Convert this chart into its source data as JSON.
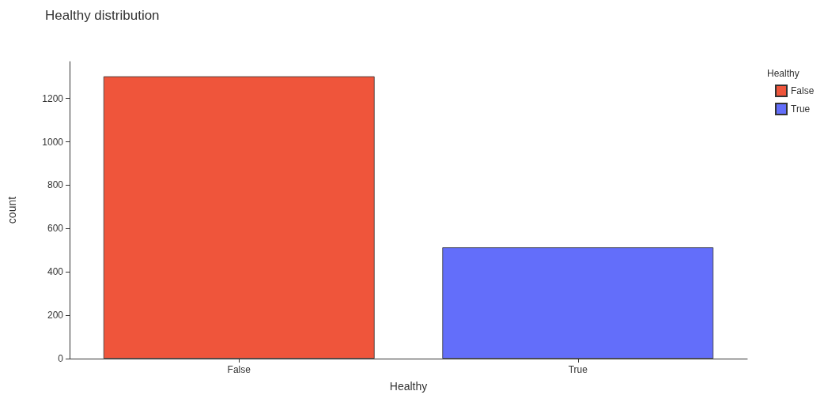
{
  "chart_data": {
    "type": "bar",
    "title": "Healthy distribution",
    "xlabel": "Healthy",
    "ylabel": "count",
    "legend_title": "Healthy",
    "categories": [
      "False",
      "True"
    ],
    "series": [
      {
        "name": "False",
        "color": "#ef553b",
        "values": [
          1302,
          null
        ]
      },
      {
        "name": "True",
        "color": "#636efa",
        "values": [
          null,
          513
        ]
      }
    ],
    "ylim": [
      0,
      1370
    ],
    "yticks": [
      0,
      200,
      400,
      600,
      800,
      1000,
      1200
    ],
    "grid": false,
    "legend": "top right"
  }
}
